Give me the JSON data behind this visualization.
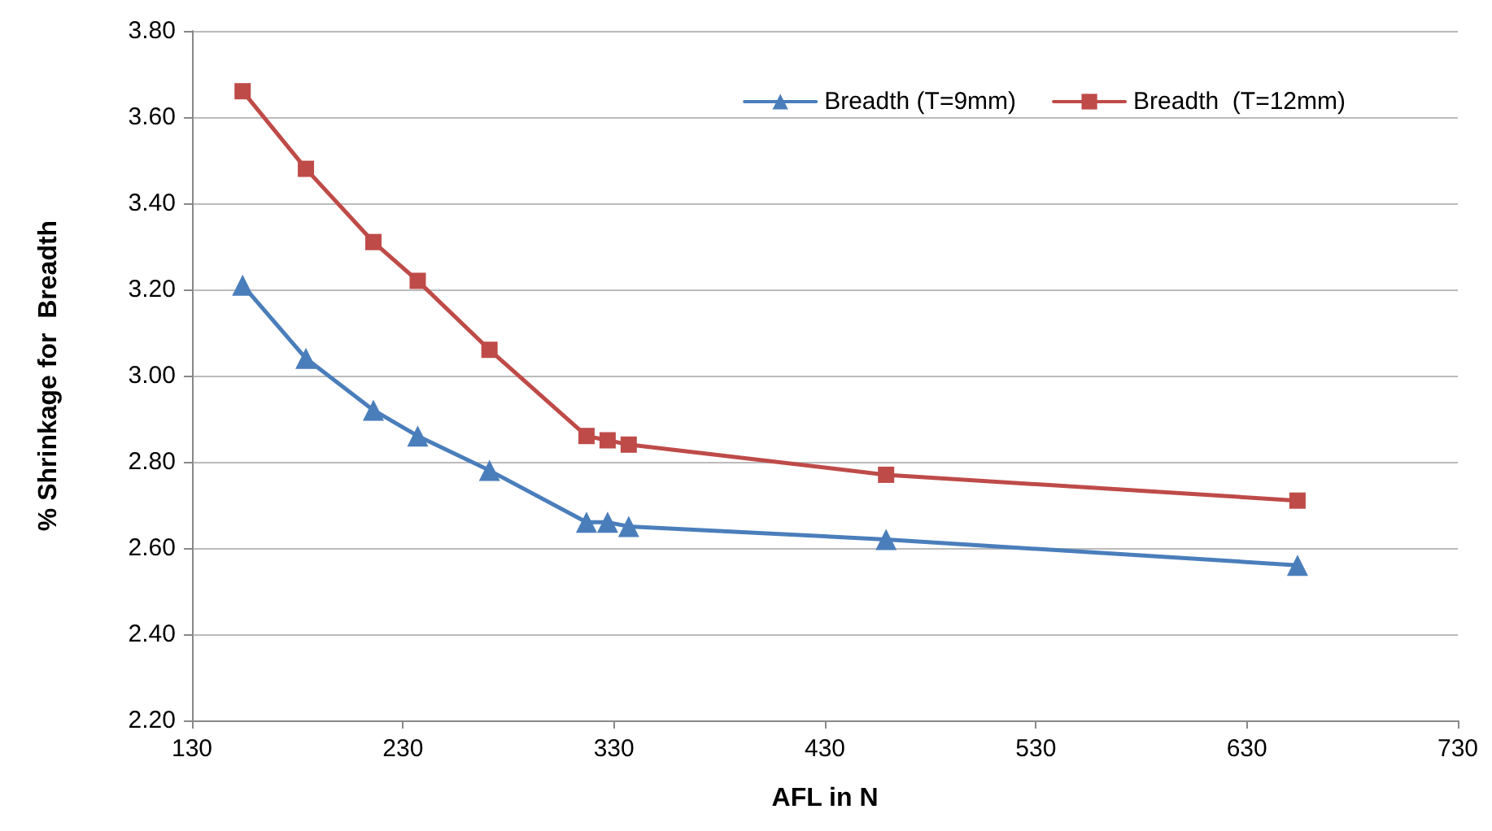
{
  "chart_data": {
    "type": "line",
    "xlabel": "AFL in N",
    "ylabel": "% Shrinkage for  Breadth",
    "x": [
      154,
      184,
      216,
      237,
      271,
      317,
      327,
      337,
      459,
      654
    ],
    "series": [
      {
        "name": "Breadth (T=9mm)",
        "color": "#4a7ebb",
        "marker": "triangle",
        "values": [
          3.21,
          3.04,
          2.92,
          2.86,
          2.78,
          2.66,
          2.66,
          2.65,
          2.62,
          2.56
        ]
      },
      {
        "name": "Breadth  (T=12mm)",
        "color": "#be4b48",
        "marker": "square",
        "values": [
          3.66,
          3.48,
          3.31,
          3.22,
          3.06,
          2.86,
          2.85,
          2.84,
          2.77,
          2.71
        ]
      }
    ],
    "xlim": [
      130,
      730
    ],
    "xticks": [
      130,
      230,
      330,
      430,
      530,
      630,
      730
    ],
    "ylim": [
      2.2,
      3.8
    ],
    "yticks": [
      {
        "value": 2.2,
        "label": "2.20"
      },
      {
        "value": 2.4,
        "label": "2.40"
      },
      {
        "value": 2.6,
        "label": "2.60"
      },
      {
        "value": 2.8,
        "label": "2.80"
      },
      {
        "value": 3.0,
        "label": "3.00"
      },
      {
        "value": 3.2,
        "label": "3.20"
      },
      {
        "value": 3.4,
        "label": "3.40"
      },
      {
        "value": 3.6,
        "label": "3.60"
      },
      {
        "value": 3.8,
        "label": "3.80"
      }
    ],
    "grid": "y",
    "legend": "top right",
    "line_style": "solid"
  }
}
